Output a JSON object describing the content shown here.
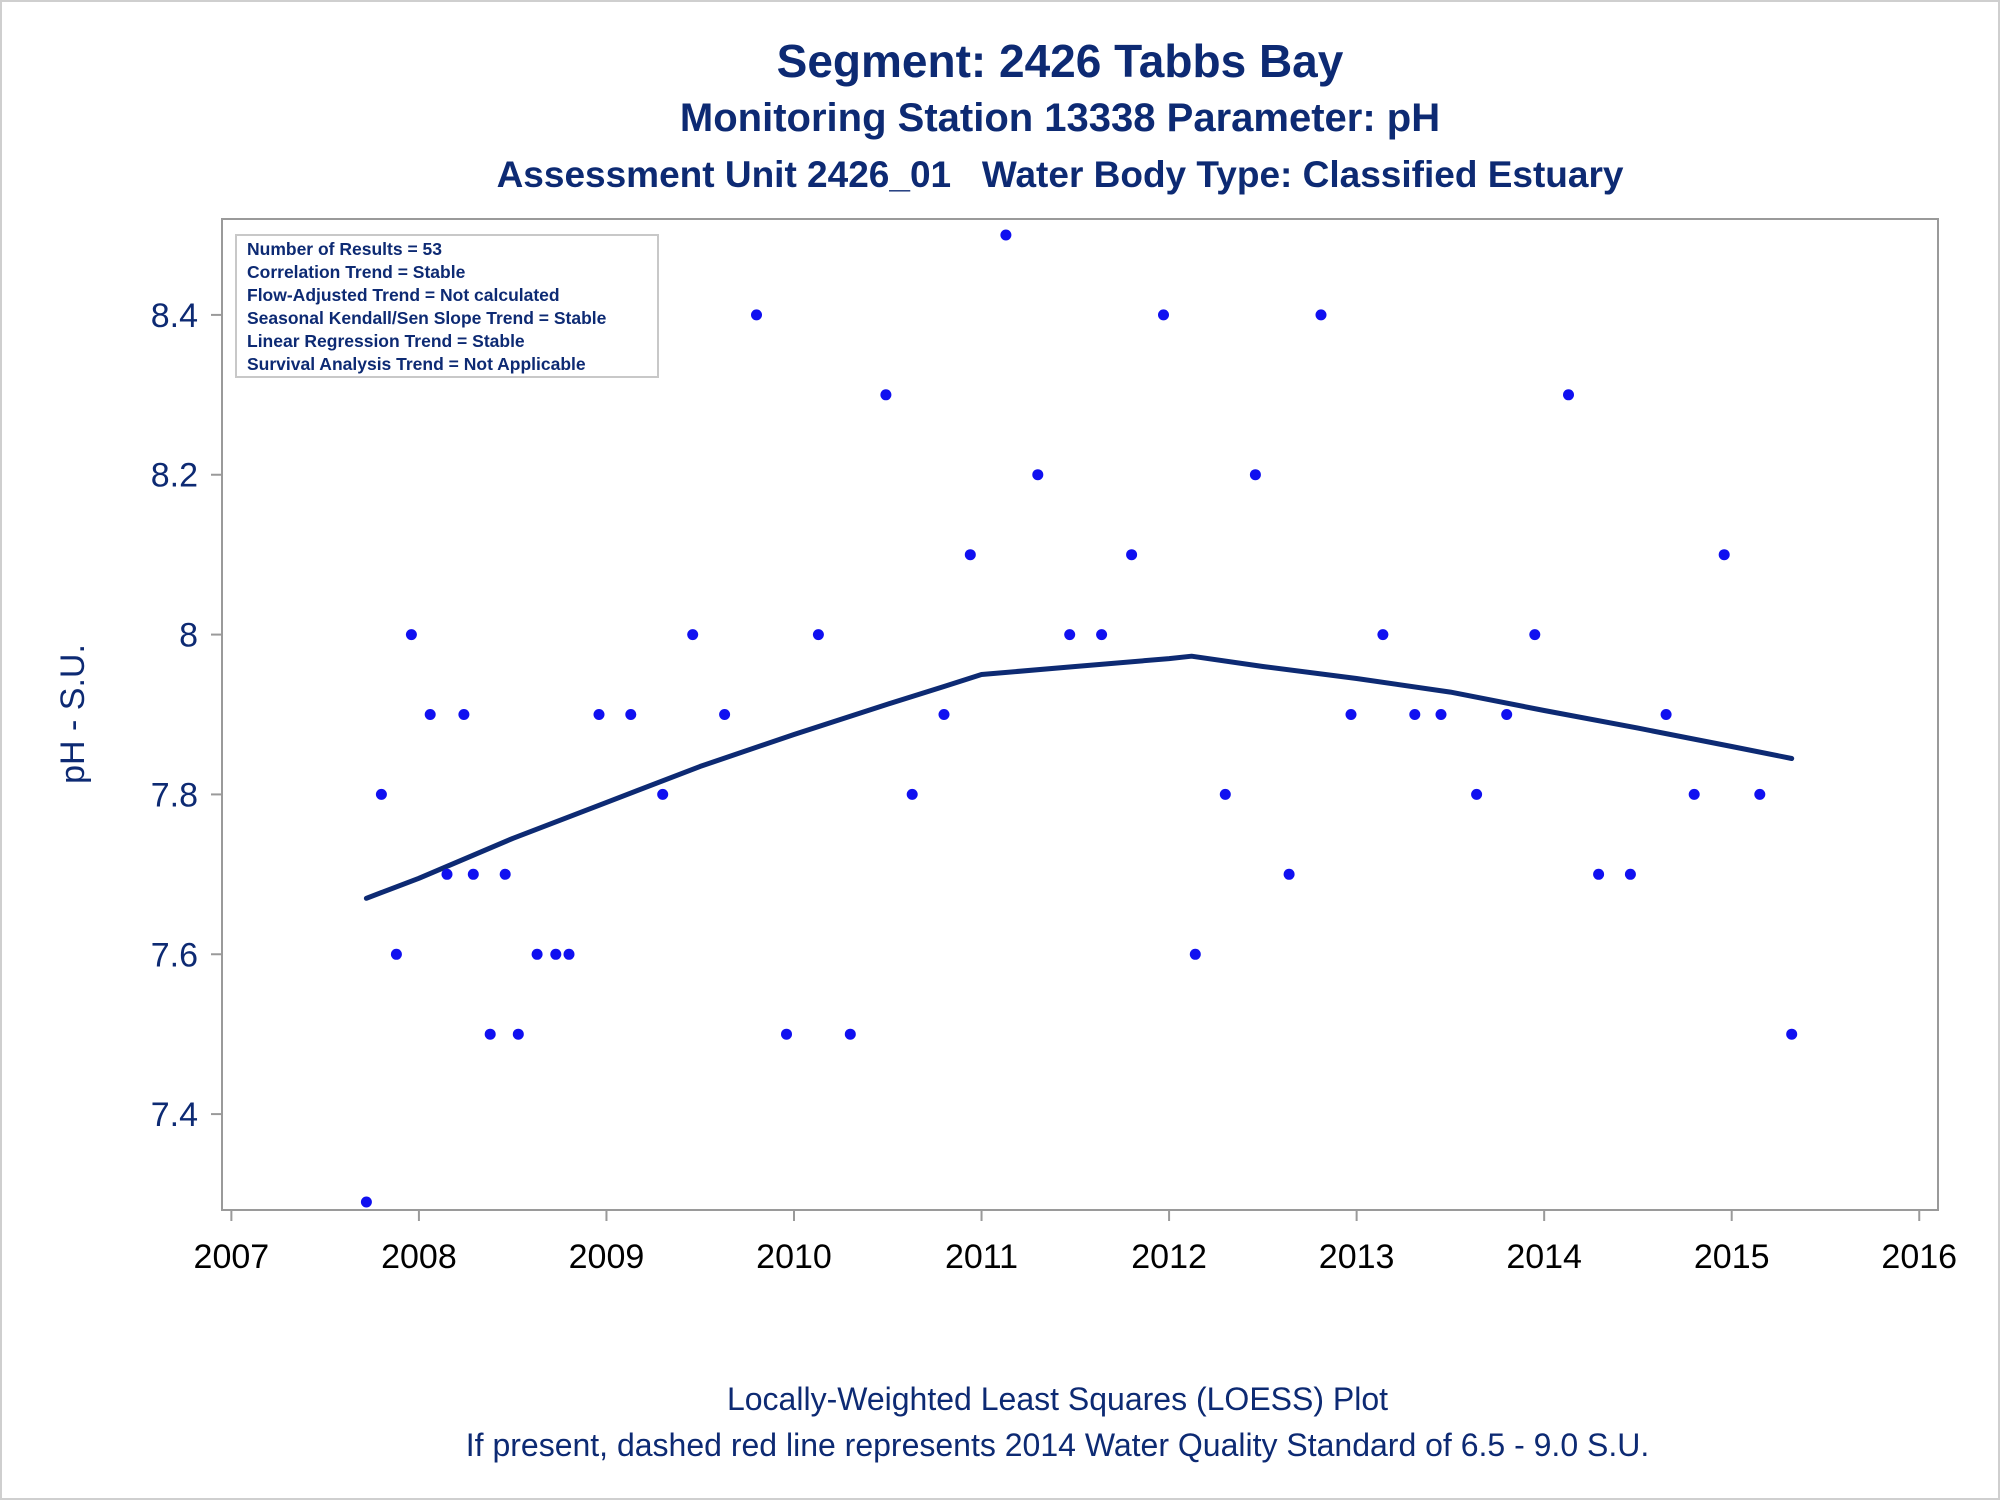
{
  "titles": {
    "line1": "Segment: 2426  Tabbs Bay",
    "line2": "Monitoring Station 13338 Parameter: pH",
    "line3": "Assessment Unit 2426_01   Water Body Type: Classified Estuary"
  },
  "footer": {
    "line1": "Locally-Weighted Least Squares (LOESS) Plot",
    "line2": "If present, dashed red line represents 2014 Water Quality Standard of 6.5 - 9.0 S.U."
  },
  "stats_box": {
    "lines": [
      "Number of Results = 53",
      "Correlation Trend = Stable",
      "Flow-Adjusted Trend = Not calculated",
      "Seasonal Kendall/Sen Slope Trend = Stable",
      "Linear Regression Trend = Stable",
      "Survival Analysis Trend = Not Applicable"
    ]
  },
  "colors": {
    "text": "#0d2a73",
    "points": "#1010f0",
    "loess": "#0d2a73",
    "axis": "#9a9a9a"
  },
  "chart_data": {
    "type": "scatter",
    "ylabel": "pH - S.U.",
    "xlim": [
      2006.95,
      2016.1
    ],
    "ylim": [
      7.28,
      8.52
    ],
    "x_ticks": [
      2007,
      2008,
      2009,
      2010,
      2011,
      2012,
      2013,
      2014,
      2015,
      2016
    ],
    "y_ticks": [
      7.4,
      7.6,
      7.8,
      8.0,
      8.2,
      8.4
    ],
    "y_tick_labels": [
      "7.4",
      "7.6",
      "7.8",
      "8",
      "8.2",
      "8.4"
    ],
    "grid": false,
    "points": {
      "x": [
        2007.72,
        2007.8,
        2007.88,
        2007.96,
        2008.06,
        2008.15,
        2008.24,
        2008.29,
        2008.38,
        2008.46,
        2008.53,
        2008.63,
        2008.73,
        2008.8,
        2008.96,
        2009.13,
        2009.3,
        2009.46,
        2009.63,
        2009.8,
        2009.96,
        2010.13,
        2010.3,
        2010.49,
        2010.63,
        2010.8,
        2010.94,
        2011.13,
        2011.3,
        2011.47,
        2011.64,
        2011.8,
        2011.97,
        2012.14,
        2012.3,
        2012.46,
        2012.64,
        2012.81,
        2012.97,
        2013.14,
        2013.31,
        2013.45,
        2013.64,
        2013.8,
        2013.95,
        2014.13,
        2014.29,
        2014.46,
        2014.65,
        2014.8,
        2014.96,
        2015.15,
        2015.32
      ],
      "y": [
        7.29,
        7.8,
        7.6,
        8.0,
        7.9,
        7.7,
        7.9,
        7.7,
        7.5,
        7.7,
        7.5,
        7.6,
        7.6,
        7.6,
        7.9,
        7.9,
        7.8,
        8.0,
        7.9,
        8.4,
        7.5,
        8.0,
        7.5,
        8.3,
        7.8,
        7.9,
        8.1,
        8.5,
        8.2,
        8.0,
        8.0,
        8.1,
        8.4,
        7.6,
        7.8,
        8.2,
        7.7,
        8.4,
        7.9,
        8.0,
        7.9,
        7.9,
        7.8,
        7.9,
        8.0,
        8.3,
        7.7,
        7.7,
        7.9,
        7.8,
        8.1,
        7.8,
        7.5
      ]
    },
    "loess": {
      "x": [
        2007.72,
        2008.0,
        2008.5,
        2009.0,
        2009.5,
        2010.0,
        2010.5,
        2010.8,
        2011.0,
        2011.5,
        2012.0,
        2012.12,
        2012.5,
        2013.0,
        2013.5,
        2014.0,
        2014.5,
        2015.0,
        2015.32
      ],
      "y": [
        7.67,
        7.695,
        7.745,
        7.79,
        7.835,
        7.875,
        7.913,
        7.935,
        7.95,
        7.96,
        7.97,
        7.973,
        7.96,
        7.945,
        7.928,
        7.905,
        7.883,
        7.86,
        7.845
      ]
    }
  }
}
